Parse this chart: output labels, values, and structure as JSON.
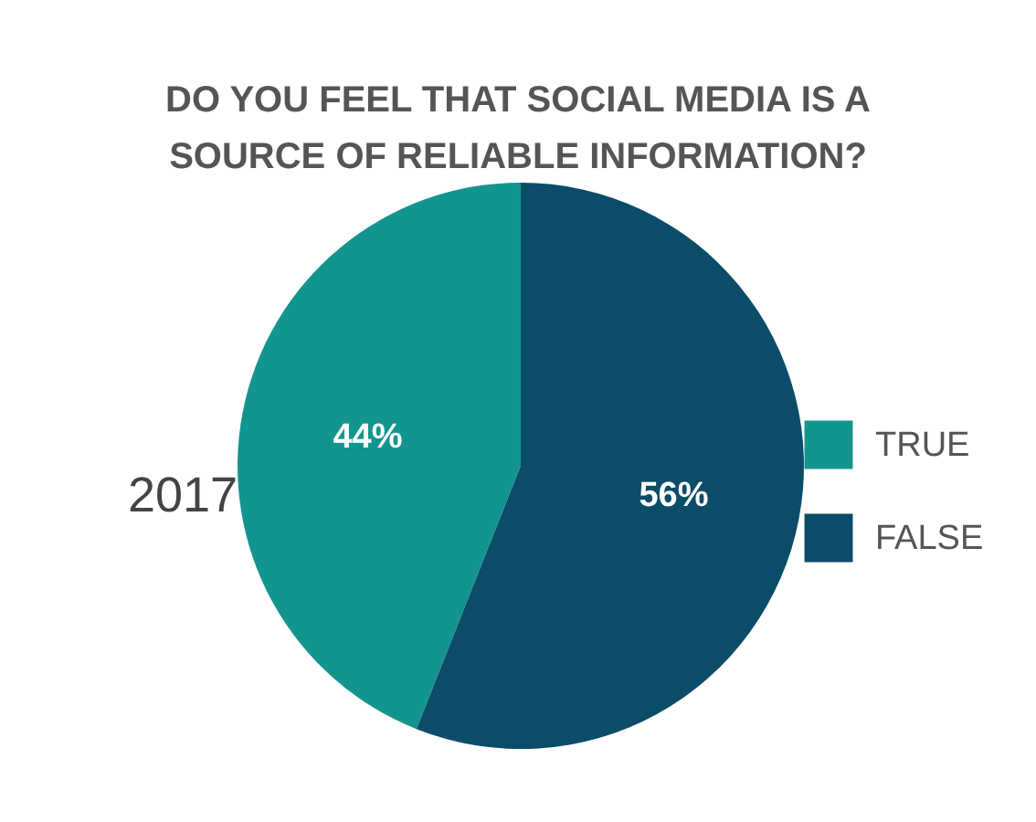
{
  "chart_data": {
    "type": "pie",
    "title": "DO YOU FEEL THAT SOCIAL MEDIA IS A SOURCE OF RELIABLE INFORMATION?",
    "categories": [
      "TRUE",
      "FALSE"
    ],
    "values": [
      44,
      56
    ],
    "colors": [
      "#13958f",
      "#0b4c68"
    ],
    "value_labels": [
      "44%",
      "56%"
    ],
    "annotations": [
      "2017"
    ],
    "legend": "right"
  }
}
